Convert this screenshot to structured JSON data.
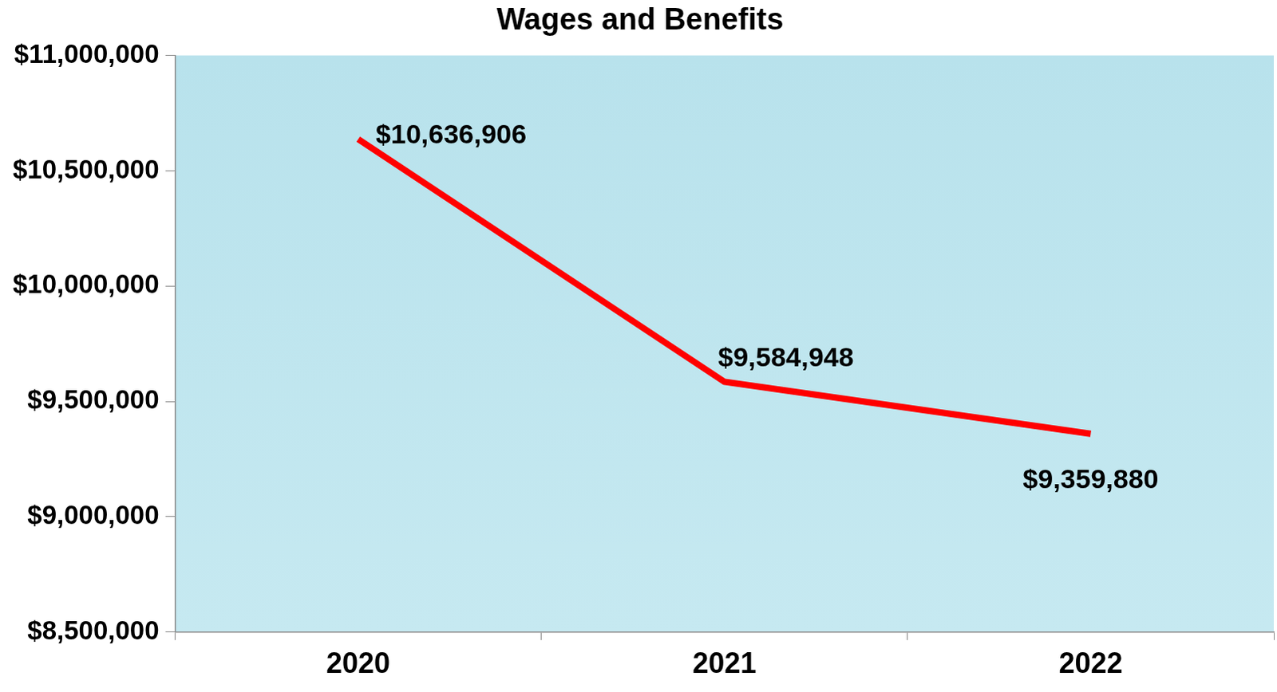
{
  "chart_data": {
    "type": "line",
    "title": "Wages and Benefits",
    "categories": [
      "2020",
      "2021",
      "2022"
    ],
    "values": [
      10636906,
      9584948,
      9359880
    ],
    "value_labels": [
      "$10,636,906",
      "$9,584,948",
      "$9,359,880"
    ],
    "color": "#ff0000",
    "ylim": [
      8500000,
      11000000
    ],
    "yticks": [
      {
        "value": 8500000,
        "label": "$8,500,000"
      },
      {
        "value": 9000000,
        "label": "$9,000,000"
      },
      {
        "value": 9500000,
        "label": "$9,500,000"
      },
      {
        "value": 10000000,
        "label": "$10,000,000"
      },
      {
        "value": 10500000,
        "label": "$10,500,000"
      },
      {
        "value": 11000000,
        "label": "$11,000,000"
      }
    ],
    "grid": false,
    "data_labels": true
  }
}
